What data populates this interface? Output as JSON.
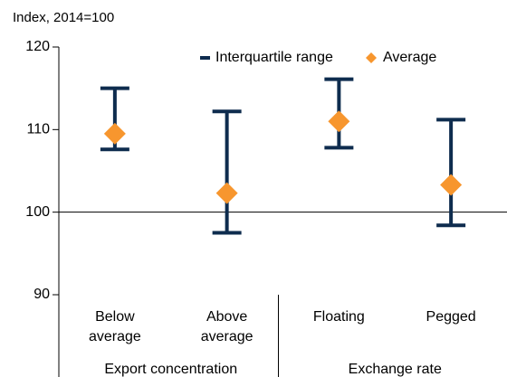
{
  "chart_data": {
    "type": "errorbar",
    "y_axis_label": "Index, 2014=100",
    "categories": [
      "Below average",
      "Above average",
      "Floating",
      "Pegged"
    ],
    "groups": [
      "Export concentration",
      "Exchange rate"
    ],
    "series": [
      {
        "name": "Interquartile range",
        "color": "#0e2c4e",
        "low": [
          107.6,
          97.5,
          107.8,
          98.4
        ],
        "high": [
          115,
          112.2,
          116.1,
          111.2
        ]
      },
      {
        "name": "Average",
        "color": "#f7962e",
        "values": [
          109.5,
          102.3,
          111,
          103.3
        ]
      }
    ],
    "ylim": [
      90,
      120
    ],
    "yticks": [
      90,
      100,
      110,
      120
    ],
    "reference_line": 100
  }
}
